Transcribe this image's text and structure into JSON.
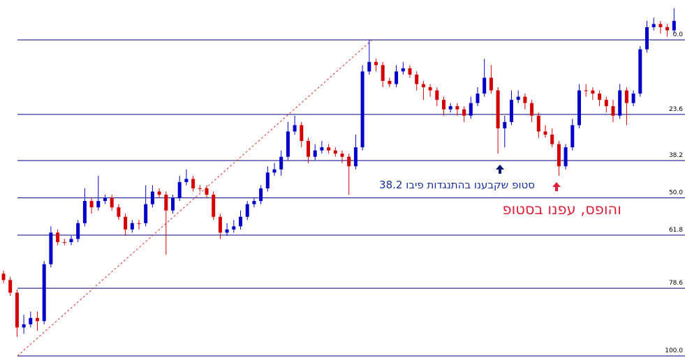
{
  "chart_data": {
    "type": "candlestick",
    "ylim": [
      -12.6,
      101.3
    ],
    "fib_levels": [
      {
        "value": 0,
        "label": "0.0"
      },
      23.6,
      38.2,
      {
        "value": 50,
        "label": "50.0"
      },
      61.8,
      78.6,
      {
        "value": 100,
        "label": "100.0"
      }
    ],
    "up_color": "#0000c8",
    "down_color": "#d40000",
    "fib_color": "#000080",
    "trend_color": "#e03030",
    "ohlc": [
      [
        74,
        73,
        77,
        76
      ],
      [
        76,
        75,
        81,
        80
      ],
      [
        80,
        79,
        94,
        91
      ],
      [
        91,
        87,
        93,
        90
      ],
      [
        90,
        86,
        91,
        88
      ],
      [
        88,
        86,
        92,
        89
      ],
      [
        89,
        70,
        90,
        71
      ],
      [
        71,
        59,
        72,
        61
      ],
      [
        61,
        60,
        65,
        64
      ],
      [
        64,
        63,
        65,
        64
      ],
      [
        64,
        62,
        65,
        63
      ],
      [
        63,
        57,
        64,
        58
      ],
      [
        58,
        47,
        59,
        51
      ],
      [
        51,
        50,
        55,
        53
      ],
      [
        53,
        43,
        54,
        51
      ],
      [
        51,
        49,
        52,
        50
      ],
      [
        50,
        49,
        54,
        53
      ],
      [
        53,
        52,
        57,
        56
      ],
      [
        56,
        55,
        62,
        60
      ],
      [
        60,
        57,
        61,
        58
      ],
      [
        58,
        57,
        60,
        58
      ],
      [
        58,
        46,
        59,
        52
      ],
      [
        52,
        46,
        53,
        48
      ],
      [
        48,
        47,
        50,
        49
      ],
      [
        49,
        48,
        68,
        54
      ],
      [
        54,
        49,
        55,
        50
      ],
      [
        50,
        43,
        51,
        45
      ],
      [
        45,
        41,
        46,
        44
      ],
      [
        44,
        43,
        48,
        47
      ],
      [
        47,
        46,
        48,
        47
      ],
      [
        47,
        46,
        50,
        49
      ],
      [
        49,
        48,
        57,
        56
      ],
      [
        56,
        55,
        63,
        61
      ],
      [
        61,
        58,
        62,
        60
      ],
      [
        60,
        57,
        61,
        59
      ],
      [
        59,
        54,
        60,
        56
      ],
      [
        56,
        51,
        57,
        52
      ],
      [
        52,
        50,
        53,
        51
      ],
      [
        51,
        46,
        52,
        47
      ],
      [
        47,
        40,
        48,
        42
      ],
      [
        42,
        39,
        43,
        41
      ],
      [
        41,
        35,
        43,
        37
      ],
      [
        37,
        26,
        38,
        29
      ],
      [
        29,
        24,
        30,
        27
      ],
      [
        27,
        26,
        34,
        32
      ],
      [
        32,
        31,
        39,
        37
      ],
      [
        37,
        33,
        38,
        35
      ],
      [
        35,
        32,
        36,
        34
      ],
      [
        34,
        33,
        36,
        35
      ],
      [
        35,
        34,
        37,
        36
      ],
      [
        36,
        35,
        39,
        37
      ],
      [
        37,
        36,
        49,
        40
      ],
      [
        40,
        30,
        41,
        34
      ],
      [
        34,
        8,
        35,
        10
      ],
      [
        10,
        0,
        11,
        7
      ],
      [
        7,
        6,
        10,
        8
      ],
      [
        8,
        7,
        15,
        13
      ],
      [
        13,
        12,
        15,
        14
      ],
      [
        14,
        8,
        15,
        10
      ],
      [
        10,
        7,
        11,
        9
      ],
      [
        9,
        8,
        12,
        11
      ],
      [
        11,
        10,
        16,
        14
      ],
      [
        14,
        13,
        19,
        15
      ],
      [
        15,
        14,
        18,
        16
      ],
      [
        16,
        15,
        21,
        19
      ],
      [
        19,
        18,
        24,
        22
      ],
      [
        22,
        20,
        23,
        21
      ],
      [
        21,
        20,
        24,
        22
      ],
      [
        22,
        21,
        26,
        24
      ],
      [
        24,
        18,
        25,
        20
      ],
      [
        20,
        15,
        21,
        17
      ],
      [
        17,
        6,
        18,
        12
      ],
      [
        12,
        8,
        17,
        16
      ],
      [
        16,
        15,
        36,
        28
      ],
      [
        28,
        24,
        34,
        26
      ],
      [
        26,
        16,
        27,
        19
      ],
      [
        19,
        16,
        20,
        18
      ],
      [
        18,
        17,
        22,
        20
      ],
      [
        20,
        19,
        26,
        24
      ],
      [
        24,
        23,
        31,
        29
      ],
      [
        29,
        27,
        31,
        30
      ],
      [
        30,
        28,
        34,
        33
      ],
      [
        33,
        32,
        43,
        40
      ],
      [
        40,
        33,
        41,
        34
      ],
      [
        34,
        25,
        35,
        27
      ],
      [
        27,
        14,
        28,
        16
      ],
      [
        16,
        14,
        18,
        16
      ],
      [
        16,
        15,
        19,
        17
      ],
      [
        17,
        16,
        21,
        19
      ],
      [
        19,
        18,
        23,
        21
      ],
      [
        21,
        19,
        26,
        24
      ],
      [
        24,
        14,
        25,
        16
      ],
      [
        16,
        15,
        27,
        20
      ],
      [
        20,
        16,
        21,
        17
      ],
      [
        17,
        2,
        18,
        3
      ],
      [
        3,
        -6,
        4,
        -4
      ],
      [
        -4,
        -7,
        -3,
        -5
      ],
      [
        -5,
        -6,
        -2,
        -4
      ],
      [
        -4,
        -5,
        -1,
        -3
      ],
      [
        -3,
        -10,
        -2,
        -6
      ]
    ],
    "annotations": [
      "סטופ שקבענו בהתנגדות פיבו 38.2",
      "והופס,  עפנו בסטופ"
    ]
  }
}
